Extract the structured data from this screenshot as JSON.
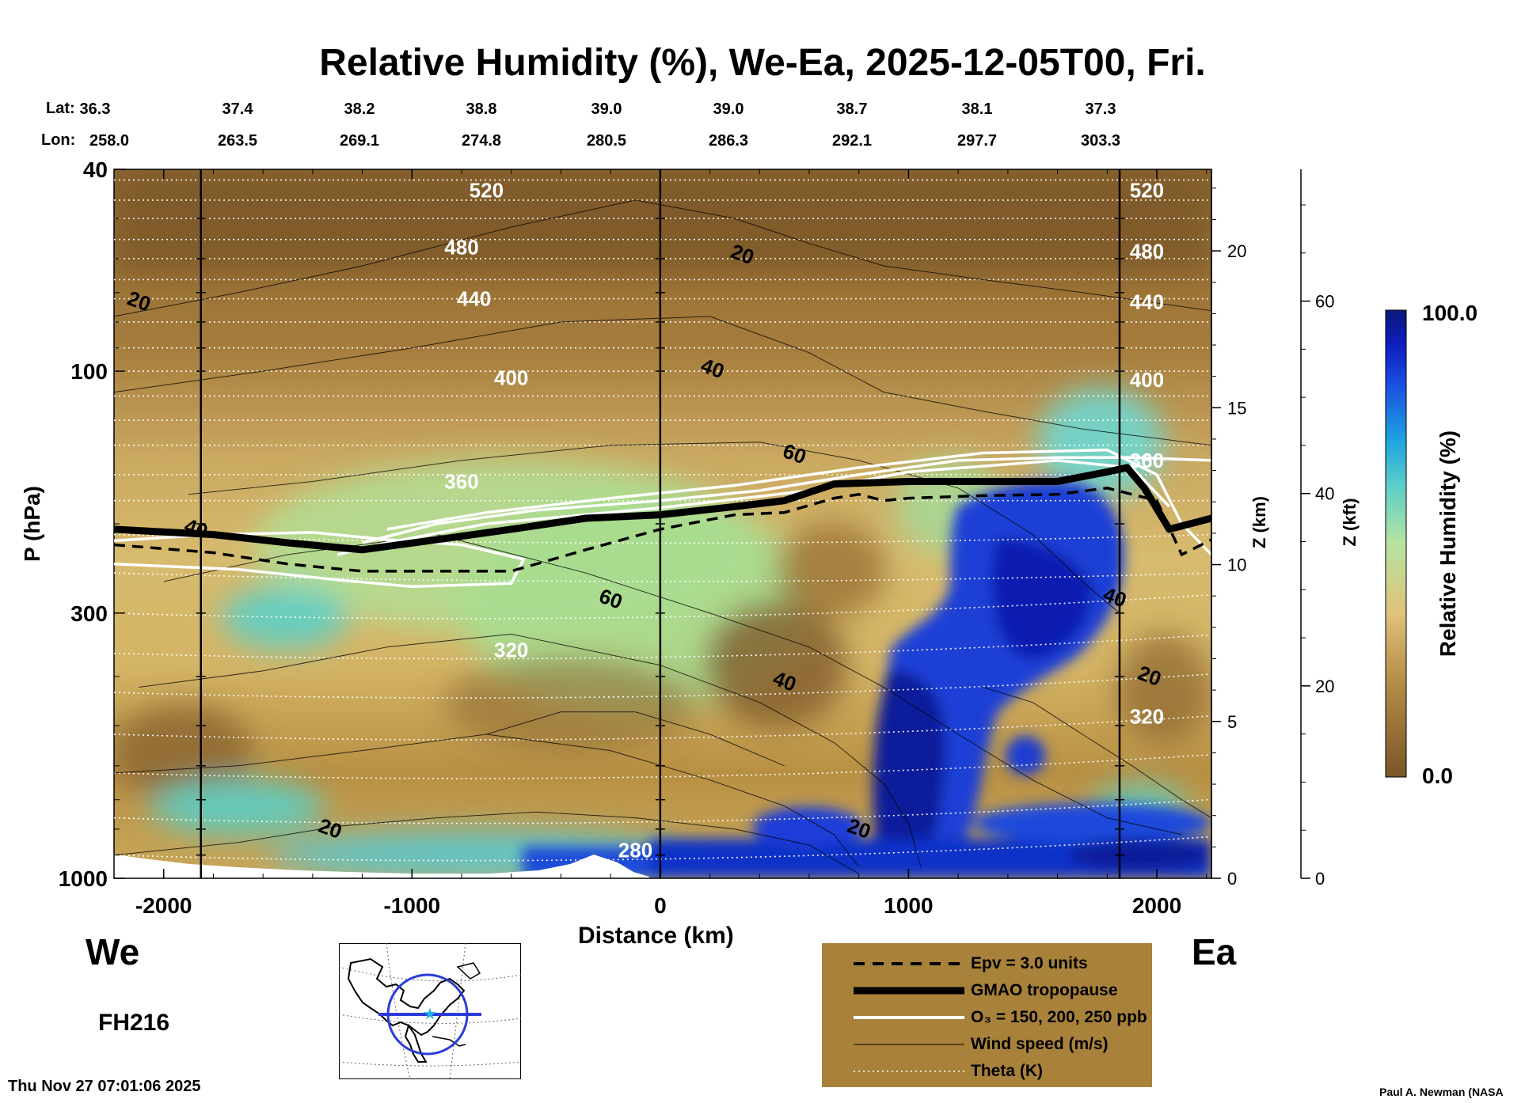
{
  "title": "Relative Humidity (%), We-Ea, 2025-12-05T00, Fri.",
  "location_header": {
    "lat_label": "Lat:",
    "lon_label": "Lon:",
    "lat": [
      "36.3",
      "37.4",
      "38.2",
      "38.8",
      "39.0",
      "39.0",
      "38.7",
      "38.1",
      "37.3"
    ],
    "lon": [
      "258.0",
      "263.5",
      "269.1",
      "274.8",
      "280.5",
      "286.3",
      "292.1",
      "297.7",
      "303.3"
    ]
  },
  "labels": {
    "west": "We",
    "east": "Ea",
    "forecast_hour": "FH216",
    "timestamp": "Thu Nov 27 07:01:06 2025",
    "credit": "Paul A. Newman (NASA"
  },
  "legend": [
    {
      "label": "Epv = 3.0 units",
      "style": "dashed-black"
    },
    {
      "label": "GMAO tropopause",
      "style": "thick-black"
    },
    {
      "label": "O₃ = 150, 200, 250 ppb",
      "style": "white"
    },
    {
      "label": "Wind speed (m/s)",
      "style": "thin-black"
    },
    {
      "label": "Theta (K)",
      "style": "dotted-white"
    }
  ],
  "colors": {
    "rh_dry": "#7a5628",
    "rh_mid": "#d8b560",
    "rh_moist": "#a8e090",
    "rh_wet": "#30c0e0",
    "rh_sat": "#0a1a8a",
    "legend_bg": "#a8823a"
  },
  "chart_data": {
    "type": "heatmap",
    "title": "Relative Humidity (%), We-Ea, 2025-12-05T00, Fri.",
    "xlabel": "Distance (km)",
    "ylabel": "P (hPa)",
    "y2label": "Z (km)",
    "y3label": "Z (kft)",
    "xlim": [
      -2200,
      2220
    ],
    "ylim": [
      1000,
      40
    ],
    "y_scale": "log",
    "x_ticks": [
      -2000,
      -1000,
      0,
      1000,
      2000
    ],
    "x_tick_labels": [
      "-2000",
      "-1000",
      "0",
      "1000",
      "2000"
    ],
    "y_ticks": [
      40,
      100,
      300,
      1000
    ],
    "y_tick_labels": [
      "40",
      "100",
      "300",
      "1000"
    ],
    "z_km_ticks": [
      0,
      5,
      10,
      15,
      20
    ],
    "z_km_tick_labels": [
      "0",
      "5",
      "10",
      "15",
      "20"
    ],
    "z_kft_ticks": [
      0,
      20,
      40,
      60
    ],
    "z_kft_tick_labels": [
      "0",
      "20",
      "40",
      "60"
    ],
    "vertical_markers_km": [
      -1850,
      0,
      1850
    ],
    "colorbar": {
      "label": "Relative Humidity (%)",
      "min": 0.0,
      "max": 100.0,
      "min_label": "0.0",
      "max_label": "100.0"
    },
    "theta_K": [
      {
        "value": 520,
        "label": "520",
        "label_at": [
          [
            -700,
            44
          ],
          [
            1960,
            44
          ]
        ]
      },
      {
        "value": 480,
        "label": "480",
        "label_at": [
          [
            -800,
            57
          ],
          [
            1960,
            58
          ]
        ]
      },
      {
        "value": 440,
        "label": "440",
        "label_at": [
          [
            -750,
            72
          ],
          [
            1960,
            73
          ]
        ]
      },
      {
        "value": 400,
        "label": "400",
        "label_at": [
          [
            -600,
            103
          ],
          [
            1960,
            104
          ]
        ]
      },
      {
        "value": 360,
        "label": "360",
        "label_at": [
          [
            -800,
            165
          ],
          [
            1960,
            150
          ]
        ]
      },
      {
        "value": 320,
        "label": "320",
        "label_at": [
          [
            -600,
            355
          ],
          [
            1960,
            480
          ]
        ]
      },
      {
        "value": 280,
        "label": "280",
        "label_at": [
          [
            -100,
            880
          ]
        ]
      }
    ],
    "wind_speed_labels": [
      {
        "value": "20",
        "at": [
          -2100,
          73
        ]
      },
      {
        "value": "20",
        "at": [
          330,
          59
        ]
      },
      {
        "value": "40",
        "at": [
          210,
          99
        ]
      },
      {
        "value": "60",
        "at": [
          540,
          146
        ]
      },
      {
        "value": "40",
        "at": [
          -1870,
          205
        ]
      },
      {
        "value": "60",
        "at": [
          -200,
          282
        ]
      },
      {
        "value": "40",
        "at": [
          500,
          410
        ]
      },
      {
        "value": "40",
        "at": [
          1830,
          280
        ]
      },
      {
        "value": "20",
        "at": [
          1970,
          400
        ]
      },
      {
        "value": "20",
        "at": [
          -1330,
          800
        ]
      },
      {
        "value": "20",
        "at": [
          800,
          800
        ]
      }
    ],
    "tropopause_hPa": {
      "x": [
        -2200,
        -1800,
        -1500,
        -1200,
        -900,
        -600,
        -300,
        0,
        300,
        500,
        700,
        1000,
        1300,
        1600,
        1800,
        1880,
        1950,
        2050,
        2220
      ],
      "p": [
        205,
        210,
        218,
        225,
        215,
        205,
        195,
        192,
        185,
        180,
        167,
        165,
        165,
        165,
        158,
        155,
        170,
        205,
        195
      ]
    },
    "epv3_hPa": {
      "x": [
        -2200,
        -1800,
        -1500,
        -1200,
        -900,
        -600,
        -300,
        0,
        300,
        500,
        700,
        800,
        900,
        1000,
        1300,
        1600,
        1800,
        2000,
        2100,
        2220
      ],
      "p": [
        220,
        228,
        240,
        248,
        248,
        248,
        225,
        205,
        192,
        190,
        178,
        175,
        180,
        178,
        176,
        175,
        170,
        180,
        230,
        215
      ]
    }
  }
}
